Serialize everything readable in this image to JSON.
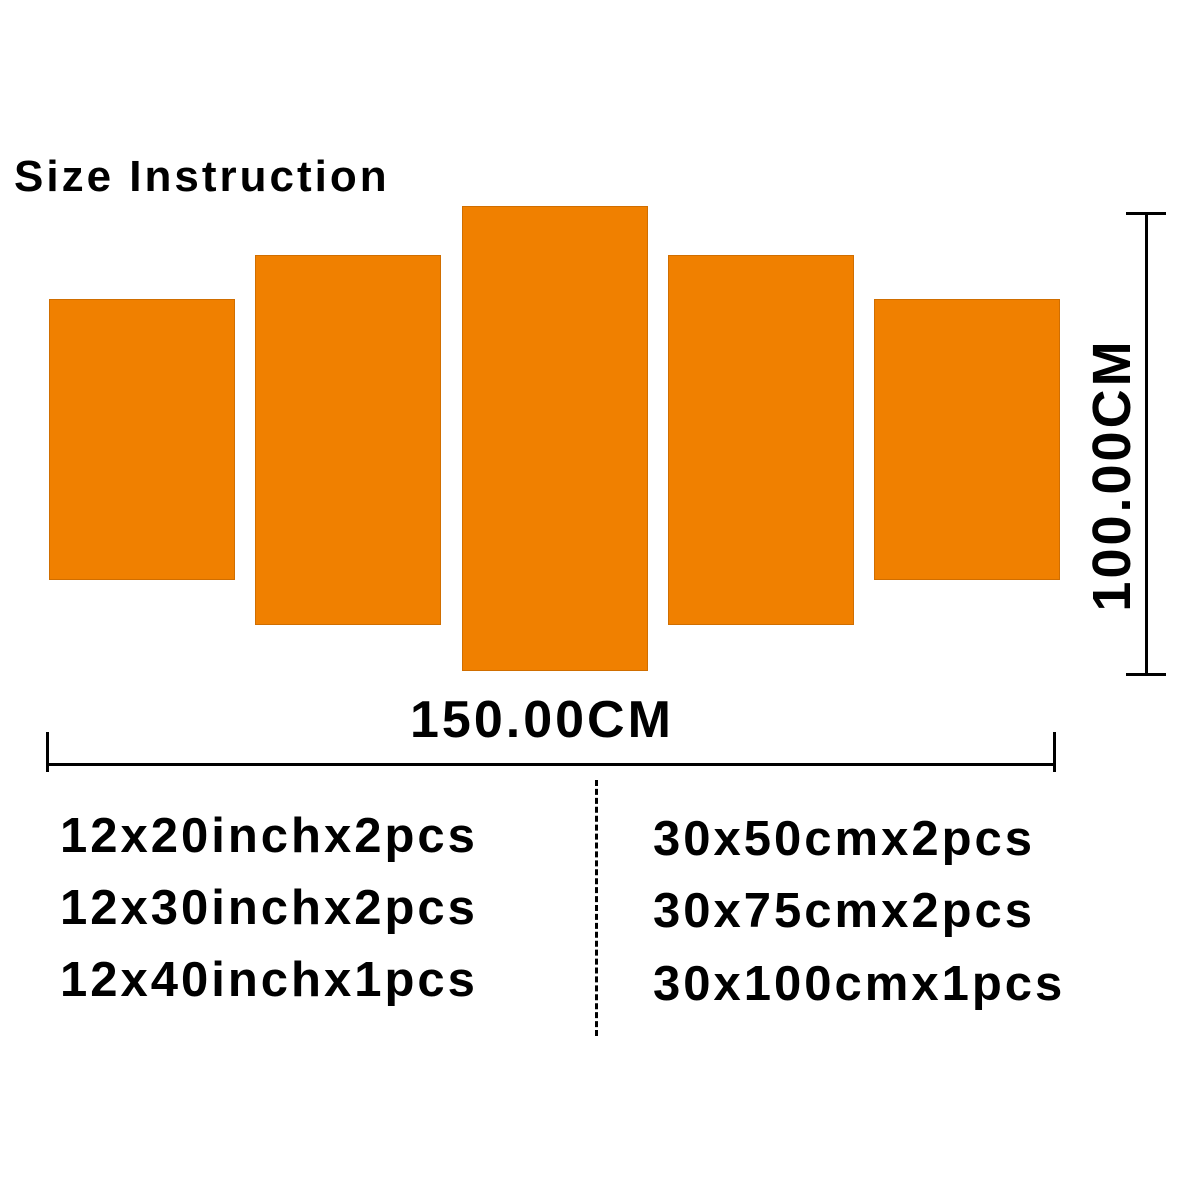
{
  "title": "Size Instruction",
  "panel_color": "#F08000",
  "panels": [
    "panel-1",
    "panel-2",
    "panel-3",
    "panel-4",
    "panel-5"
  ],
  "dimensions": {
    "width": "150.00CM",
    "height": "100.00CM"
  },
  "specs": {
    "inch": [
      "12x20inchx2pcs",
      "12x30inchx2pcs",
      "12x40inchx1pcs"
    ],
    "cm": [
      "30x50cmx2pcs",
      "30x75cmx2pcs",
      "30x100cmx1pcs"
    ]
  }
}
